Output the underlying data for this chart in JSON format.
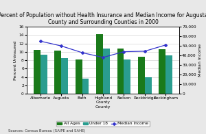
{
  "title": "Percent of Population without Health Insurance and Median Income for Augusta\nCounty and Surrounding Counties in 2000",
  "counties": [
    "Albemarle",
    "Augusta",
    "Bath",
    "Highland\nCounty",
    "Nelson",
    "Rockbridge",
    "Rockingham"
  ],
  "all_ages": [
    10.5,
    10.3,
    8.2,
    14.2,
    10.8,
    8.8,
    10.6
  ],
  "under_18": [
    9.4,
    8.5,
    3.7,
    10.8,
    8.2,
    4.0,
    9.2
  ],
  "median_income": [
    55000,
    50000,
    43000,
    38000,
    44000,
    44500,
    51000
  ],
  "bar_color_all": "#1a7a1a",
  "bar_color_under18": "#2a9d8f",
  "line_color": "#3333cc",
  "ylabel_left": "Percent Uninsured",
  "ylabel_right": "Median Income",
  "xlabel": "County",
  "source": "Sources: Census Bureau (SAIPE and SAHE)",
  "ylim_left": [
    0,
    16
  ],
  "ylim_right": [
    0,
    70000
  ],
  "yticks_left": [
    0,
    2,
    4,
    6,
    8,
    10,
    12,
    14,
    16
  ],
  "yticks_right": [
    0,
    10000,
    20000,
    30000,
    40000,
    50000,
    60000,
    70000
  ],
  "title_fontsize": 5.5,
  "axis_fontsize": 4.5,
  "tick_fontsize": 4.2,
  "source_fontsize": 3.8,
  "legend_fontsize": 4.2,
  "bg_color": "#ffffff",
  "fig_bg_color": "#e8e8e8"
}
